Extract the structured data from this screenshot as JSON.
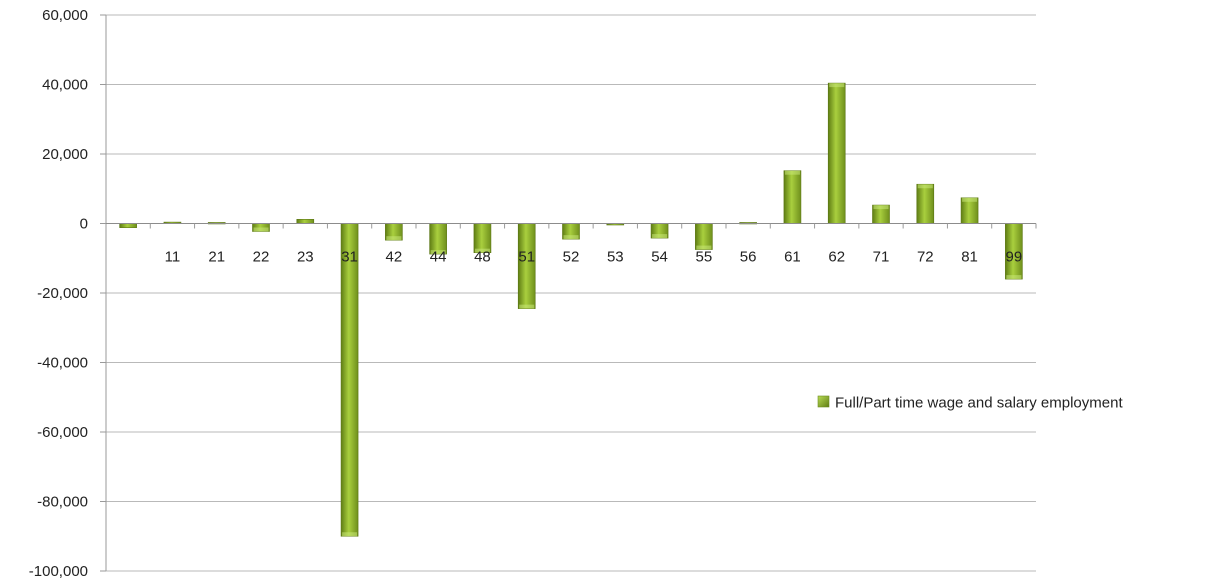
{
  "chart_data": {
    "type": "bar",
    "title": "",
    "xlabel": "",
    "ylabel": "",
    "categories": [
      "",
      "11",
      "21",
      "22",
      "23",
      "31",
      "42",
      "44",
      "48",
      "51",
      "52",
      "53",
      "54",
      "55",
      "56",
      "61",
      "62",
      "71",
      "72",
      "81",
      "99"
    ],
    "series": [
      {
        "name": "Full/Part time wage and salary employment",
        "values": [
          -1200,
          400,
          300,
          -2300,
          1200,
          -90000,
          -4800,
          -8800,
          -8400,
          -24500,
          -4500,
          -300,
          -4200,
          -7500,
          300,
          15200,
          40400,
          5300,
          11300,
          7400,
          -16000
        ],
        "color": "#8fb32a"
      }
    ],
    "yticks": [
      60000,
      40000,
      20000,
      0,
      -20000,
      -40000,
      -60000,
      -80000,
      -100000
    ],
    "ytick_labels": [
      "60,000",
      "40,000",
      "20,000",
      "0",
      "-20,000",
      "-40,000",
      "-60,000",
      "-80,000",
      "-100,000"
    ],
    "ylim": [
      -100000,
      60000
    ],
    "grid": true,
    "legend_position": "right"
  }
}
